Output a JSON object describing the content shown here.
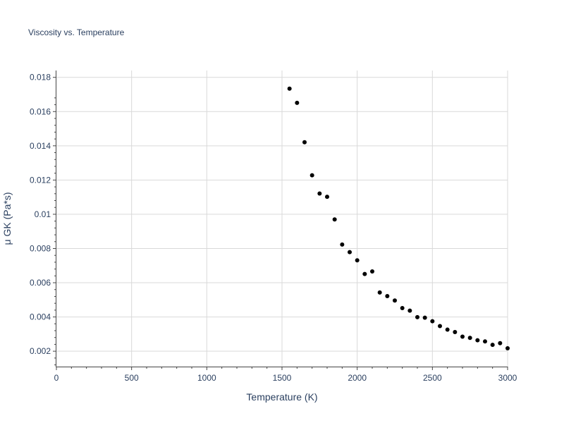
{
  "chart_data": {
    "type": "scatter",
    "title": "Viscosity vs. Temperature",
    "xlabel": "Temperature (K)",
    "ylabel": "μ GK (Pa*s)",
    "xlim": [
      0,
      3000
    ],
    "ylim": [
      0.0011,
      0.0184
    ],
    "x_ticks": [
      0,
      500,
      1000,
      1500,
      2000,
      2500,
      3000
    ],
    "x_tick_labels": [
      "0",
      "500",
      "1000",
      "1500",
      "2000",
      "2500",
      "3000"
    ],
    "y_ticks": [
      0.002,
      0.004,
      0.006,
      0.008,
      0.01,
      0.012,
      0.014,
      0.016,
      0.018
    ],
    "y_tick_labels": [
      "0.002",
      "0.004",
      "0.006",
      "0.008",
      "0.01",
      "0.012",
      "0.014",
      "0.016",
      "0.018"
    ],
    "grid": true,
    "marker_color": "#000000",
    "series": [
      {
        "x": [
          1550,
          1600,
          1650,
          1700,
          1750,
          1800,
          1850,
          1900,
          1950,
          2000,
          2050,
          2100,
          2150,
          2200,
          2250,
          2300,
          2350,
          2400,
          2450,
          2500,
          2550,
          2600,
          2650,
          2700,
          2750,
          2800,
          2850,
          2900,
          2950,
          3000
        ],
        "y": [
          0.01734,
          0.01651,
          0.01421,
          0.01228,
          0.01121,
          0.01102,
          0.0097,
          0.00823,
          0.00779,
          0.00731,
          0.00651,
          0.00666,
          0.00543,
          0.00522,
          0.00496,
          0.00452,
          0.00437,
          0.00399,
          0.00396,
          0.00375,
          0.00347,
          0.00326,
          0.00312,
          0.00285,
          0.00278,
          0.00264,
          0.00257,
          0.00237,
          0.00247,
          0.00217
        ]
      }
    ]
  }
}
